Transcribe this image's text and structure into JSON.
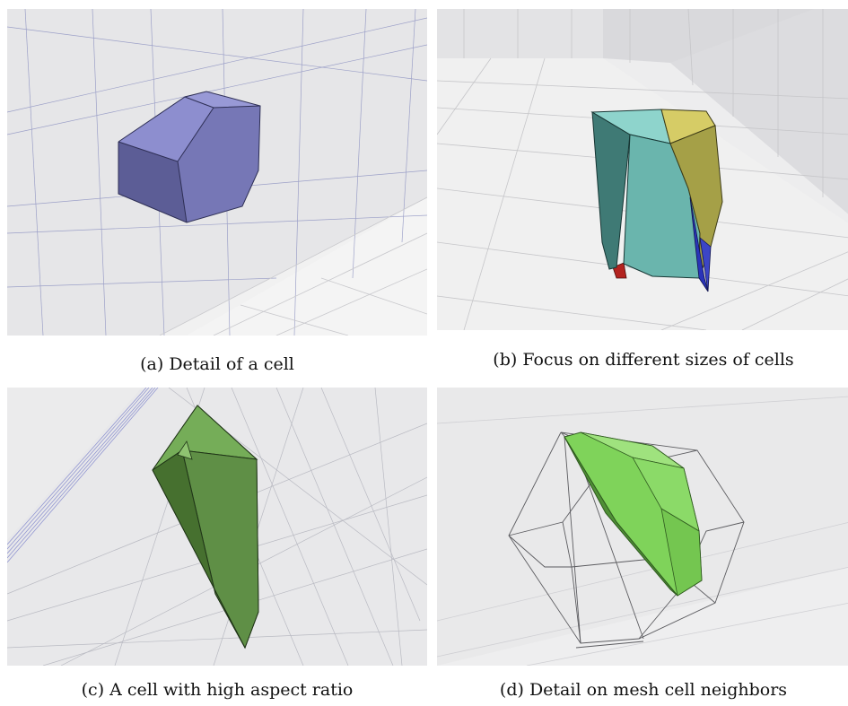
{
  "figure": {
    "panels": [
      {
        "caption": "(a) Detail of a cell",
        "icon": "cell-polyhedron-purple",
        "accent": "#7e7fc0"
      },
      {
        "caption": "(b) Focus on different sizes of cells",
        "icon": "cells-cluster-multicolor",
        "accent": "#6ab5ad"
      },
      {
        "caption": "(c) A cell with high aspect ratio",
        "icon": "elongated-cell-green",
        "accent": "#5f8f46"
      },
      {
        "caption": "(d) Detail on mesh cell neighbors",
        "icon": "cell-with-neighbors-wireframe",
        "accent": "#7fd35a"
      }
    ]
  }
}
